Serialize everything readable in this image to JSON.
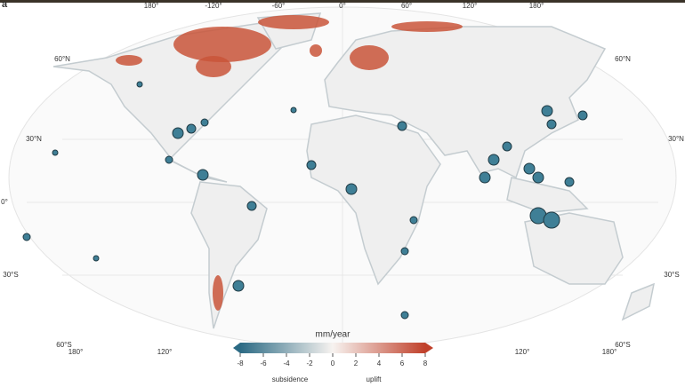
{
  "panel_label": "a",
  "top_lon_labels": [
    "180°",
    "-120°",
    "-60°",
    "0°",
    "60°",
    "120°",
    "180°"
  ],
  "left_lat_labels": [
    "60°N",
    "30°N",
    "0°",
    "30°S",
    "60°S"
  ],
  "right_lat_labels": [
    "60°N",
    "30°N",
    "30°S",
    "60°S"
  ],
  "bottom_lon_labels": [
    "180°",
    "120°",
    "120°",
    "180°"
  ],
  "legend": {
    "title": "mm/year",
    "ticks": [
      -8,
      -6,
      -4,
      -2,
      0,
      2,
      4,
      6,
      8
    ],
    "left_label": "subsidence",
    "right_label": "uplift"
  }
}
